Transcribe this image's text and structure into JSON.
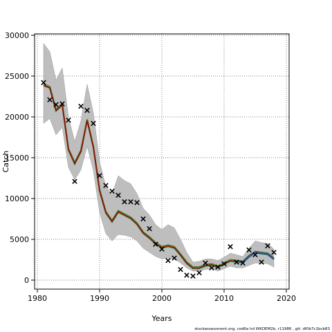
{
  "chart_data": {
    "type": "line",
    "title": "",
    "xlabel": "Years",
    "ylabel": "Catch",
    "xlim": [
      1980,
      2020
    ],
    "ylim": [
      0,
      30000
    ],
    "x_ticks": [
      1980,
      1990,
      2000,
      2010,
      2020
    ],
    "y_ticks": [
      0,
      5000,
      10000,
      15000,
      20000,
      25000,
      30000
    ],
    "grid": true,
    "colors": {
      "band": "#bebebe",
      "band_edge": "#9a9a9a",
      "estimate_outer": "#1e7a2e",
      "estimate_mid": "#c8a020",
      "estimate_inner": "#8b1a00",
      "estimate_recent": "#4b3c9a",
      "estimate_recent_edge": "#2bbfb2",
      "observed_marker": "#000000"
    },
    "x": [
      1981,
      1982,
      1983,
      1984,
      1985,
      1986,
      1987,
      1988,
      1989,
      1990,
      1991,
      1992,
      1993,
      1994,
      1995,
      1996,
      1997,
      1998,
      1999,
      2000,
      2001,
      2002,
      2003,
      2004,
      2005,
      2006,
      2007,
      2008,
      2009,
      2010,
      2011,
      2012,
      2013,
      2014,
      2015,
      2016,
      2017,
      2018
    ],
    "series": [
      {
        "kind": "estimate",
        "values": [
          23900,
          23600,
          20800,
          21500,
          16000,
          14300,
          15800,
          19600,
          16300,
          11000,
          8300,
          7200,
          8400,
          8000,
          7600,
          6900,
          5800,
          5200,
          4500,
          4000,
          4200,
          4000,
          3100,
          2100,
          1500,
          1500,
          1800,
          1900,
          1600,
          2000,
          2400,
          2300,
          2200,
          2900,
          3400,
          3300,
          3200,
          2600
        ]
      },
      {
        "kind": "band_upper",
        "values": [
          29000,
          28000,
          24500,
          26000,
          20000,
          17000,
          19500,
          24000,
          20500,
          14500,
          11500,
          10500,
          12800,
          12200,
          11800,
          10600,
          8800,
          8000,
          6800,
          6200,
          6800,
          6400,
          5000,
          3400,
          2200,
          2300,
          2600,
          2600,
          2400,
          2800,
          3300,
          3100,
          2900,
          3900,
          4800,
          4600,
          4500,
          3800
        ]
      },
      {
        "kind": "band_lower",
        "values": [
          19200,
          19800,
          17800,
          18700,
          13800,
          12300,
          13500,
          16400,
          13400,
          8300,
          5700,
          4800,
          5600,
          5500,
          5300,
          4800,
          3900,
          3400,
          2900,
          2600,
          2700,
          2600,
          2100,
          1500,
          1100,
          1100,
          1300,
          1400,
          1100,
          1400,
          1700,
          1500,
          1500,
          1800,
          2100,
          2100,
          2000,
          1600
        ]
      },
      {
        "kind": "observed",
        "values": [
          24200,
          22100,
          21500,
          21600,
          19600,
          12100,
          21300,
          20800,
          19200,
          12800,
          11600,
          10900,
          10400,
          9600,
          9600,
          9500,
          7500,
          6300,
          4400,
          3800,
          2400,
          2700,
          1300,
          600,
          500,
          900,
          2100,
          1500,
          1600,
          2000,
          4100,
          2200,
          2100,
          3700,
          3100,
          2200,
          4200,
          3400
        ]
      }
    ]
  },
  "footer": "stockassessment.org, cod6a hd WKDEM2b, r11986 , git: df0b7c1bcb83"
}
